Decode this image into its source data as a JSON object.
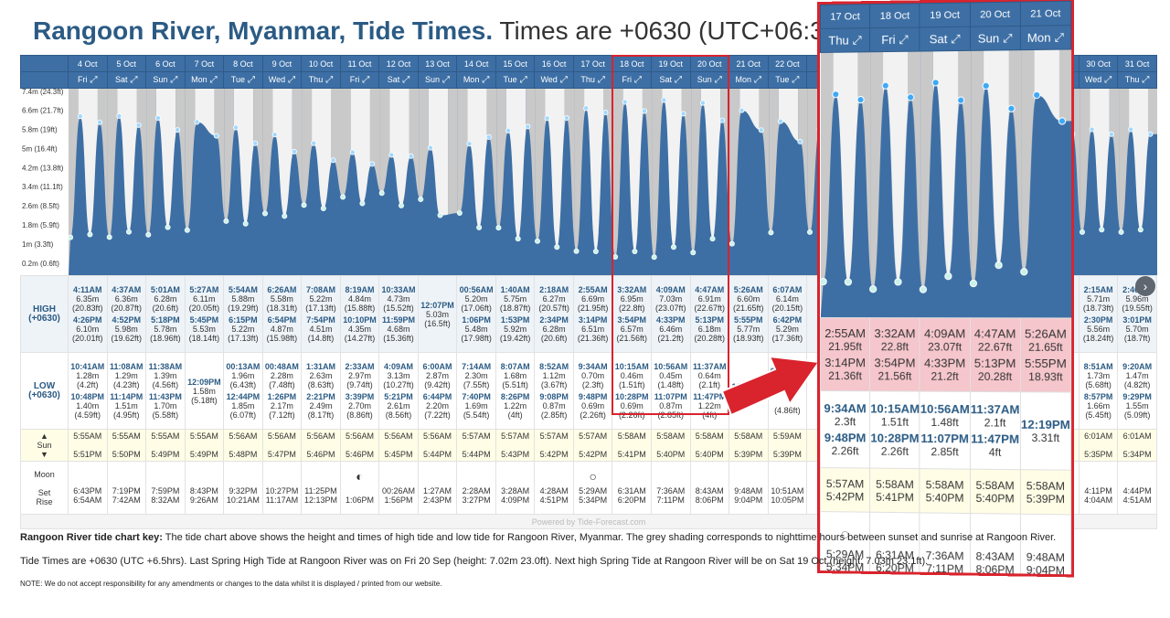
{
  "header": {
    "title_place": "Rangoon River, Myanmar, Tide Times.",
    "title_tz": "Times are +0630 (UTC+06:30)"
  },
  "colors": {
    "sea": "#3d6fa5",
    "night": "#c9c9c9",
    "day": "#f2f2f2",
    "accent": "#2b5b84",
    "highlight": "#d9232d",
    "spring": "#f5c6cc"
  },
  "icons": {
    "expand": "expand-icon",
    "moon": "moon-phase-icon",
    "sun": "sun-icon"
  },
  "labels": {
    "high": "HIGH",
    "high_tz": "(+0630)",
    "low": "LOW",
    "low_tz": "(+0630)",
    "sun": "Sun",
    "moon": "Moon",
    "set": "Set",
    "rise": "Rise"
  },
  "columns": [
    {
      "date": "4 Oct",
      "day": "Fri",
      "high": [
        [
          "4:11AM",
          "6.35m",
          "(20.83ft)"
        ],
        [
          "4:26PM",
          "6.10m",
          "(20.01ft)"
        ]
      ],
      "low": [
        [
          "10:41AM",
          "1.28m",
          "(4.2ft)"
        ],
        [
          "10:48PM",
          "1.40m",
          "(4.59ft)"
        ]
      ],
      "sunrise": "5:55AM",
      "sunset": "5:51PM",
      "moonset": "6:43PM",
      "moonrise": "6:54AM",
      "moon": ""
    },
    {
      "date": "5 Oct",
      "day": "Sat",
      "high": [
        [
          "4:37AM",
          "6.36m",
          "(20.87ft)"
        ],
        [
          "4:52PM",
          "5.98m",
          "(19.62ft)"
        ]
      ],
      "low": [
        [
          "11:08AM",
          "1.29m",
          "(4.23ft)"
        ],
        [
          "11:14PM",
          "1.51m",
          "(4.95ft)"
        ]
      ],
      "sunrise": "5:55AM",
      "sunset": "5:50PM",
      "moonset": "7:19PM",
      "moonrise": "7:42AM",
      "moon": ""
    },
    {
      "date": "6 Oct",
      "day": "Sun",
      "high": [
        [
          "5:01AM",
          "6.28m",
          "(20.6ft)"
        ],
        [
          "5:18PM",
          "5.78m",
          "(18.96ft)"
        ]
      ],
      "low": [
        [
          "11:38AM",
          "1.39m",
          "(4.56ft)"
        ],
        [
          "11:43PM",
          "1.70m",
          "(5.58ft)"
        ]
      ],
      "sunrise": "5:55AM",
      "sunset": "5:49PM",
      "moonset": "7:59PM",
      "moonrise": "8:32AM",
      "moon": ""
    },
    {
      "date": "7 Oct",
      "day": "Mon",
      "high": [
        [
          "5:27AM",
          "6.11m",
          "(20.05ft)"
        ],
        [
          "5:45PM",
          "5.53m",
          "(18.14ft)"
        ]
      ],
      "low": [
        [
          "12:09PM",
          "1.58m",
          "(5.18ft)"
        ]
      ],
      "sunrise": "5:55AM",
      "sunset": "5:49PM",
      "moonset": "8:43PM",
      "moonrise": "9:26AM",
      "moon": ""
    },
    {
      "date": "8 Oct",
      "day": "Tue",
      "high": [
        [
          "5:54AM",
          "5.88m",
          "(19.29ft)"
        ],
        [
          "6:15PM",
          "5.22m",
          "(17.13ft)"
        ]
      ],
      "low": [
        [
          "00:13AM",
          "1.96m",
          "(6.43ft)"
        ],
        [
          "12:44PM",
          "1.85m",
          "(6.07ft)"
        ]
      ],
      "sunrise": "5:56AM",
      "sunset": "5:48PM",
      "moonset": "9:32PM",
      "moonrise": "10:21AM",
      "moon": ""
    },
    {
      "date": "9 Oct",
      "day": "Wed",
      "high": [
        [
          "6:26AM",
          "5.58m",
          "(18.31ft)"
        ],
        [
          "6:54PM",
          "4.87m",
          "(15.98ft)"
        ]
      ],
      "low": [
        [
          "00:48AM",
          "2.28m",
          "(7.48ft)"
        ],
        [
          "1:26PM",
          "2.17m",
          "(7.12ft)"
        ]
      ],
      "sunrise": "5:56AM",
      "sunset": "5:47PM",
      "moonset": "10:27PM",
      "moonrise": "11:17AM",
      "moon": ""
    },
    {
      "date": "10 Oct",
      "day": "Thu",
      "high": [
        [
          "7:08AM",
          "5.22m",
          "(17.13ft)"
        ],
        [
          "7:54PM",
          "4.51m",
          "(14.8ft)"
        ]
      ],
      "low": [
        [
          "1:31AM",
          "2.63m",
          "(8.63ft)"
        ],
        [
          "2:21PM",
          "2.49m",
          "(8.17ft)"
        ]
      ],
      "sunrise": "5:56AM",
      "sunset": "5:46PM",
      "moonset": "11:25PM",
      "moonrise": "12:13PM",
      "moon": ""
    },
    {
      "date": "11 Oct",
      "day": "Fri",
      "high": [
        [
          "8:19AM",
          "4.84m",
          "(15.88ft)"
        ],
        [
          "10:10PM",
          "4.35m",
          "(14.27ft)"
        ]
      ],
      "low": [
        [
          "2:33AM",
          "2.97m",
          "(9.74ft)"
        ],
        [
          "3:39PM",
          "2.70m",
          "(8.86ft)"
        ]
      ],
      "sunrise": "5:56AM",
      "sunset": "5:46PM",
      "moonset": "",
      "moonrise": "1:06PM",
      "moon": "◐"
    },
    {
      "date": "12 Oct",
      "day": "Sat",
      "high": [
        [
          "10:33AM",
          "4.73m",
          "(15.52ft)"
        ],
        [
          "11:59PM",
          "4.68m",
          "(15.36ft)"
        ]
      ],
      "low": [
        [
          "4:09AM",
          "3.13m",
          "(10.27ft)"
        ],
        [
          "5:21PM",
          "2.61m",
          "(8.56ft)"
        ]
      ],
      "sunrise": "5:56AM",
      "sunset": "5:45PM",
      "moonset": "00:26AM",
      "moonrise": "1:56PM",
      "moon": ""
    },
    {
      "date": "13 Oct",
      "day": "Sun",
      "high": [
        [
          "12:07PM",
          "5.03m",
          "(16.5ft)"
        ]
      ],
      "low": [
        [
          "6:00AM",
          "2.87m",
          "(9.42ft)"
        ],
        [
          "6:44PM",
          "2.20m",
          "(7.22ft)"
        ]
      ],
      "sunrise": "5:56AM",
      "sunset": "5:44PM",
      "moonset": "1:27AM",
      "moonrise": "2:43PM",
      "moon": ""
    },
    {
      "date": "14 Oct",
      "day": "Mon",
      "high": [
        [
          "00:56AM",
          "5.20m",
          "(17.06ft)"
        ],
        [
          "1:06PM",
          "5.48m",
          "(17.98ft)"
        ]
      ],
      "low": [
        [
          "7:14AM",
          "2.30m",
          "(7.55ft)"
        ],
        [
          "7:40PM",
          "1.69m",
          "(5.54ft)"
        ]
      ],
      "sunrise": "5:57AM",
      "sunset": "5:44PM",
      "moonset": "2:28AM",
      "moonrise": "3:27PM",
      "moon": ""
    },
    {
      "date": "15 Oct",
      "day": "Tue",
      "high": [
        [
          "1:40AM",
          "5.75m",
          "(18.87ft)"
        ],
        [
          "1:53PM",
          "5.92m",
          "(19.42ft)"
        ]
      ],
      "low": [
        [
          "8:07AM",
          "1.68m",
          "(5.51ft)"
        ],
        [
          "8:26PM",
          "1.22m",
          "(4ft)"
        ]
      ],
      "sunrise": "5:57AM",
      "sunset": "5:43PM",
      "moonset": "3:28AM",
      "moonrise": "4:09PM",
      "moon": ""
    },
    {
      "date": "16 Oct",
      "day": "Wed",
      "high": [
        [
          "2:18AM",
          "6.27m",
          "(20.57ft)"
        ],
        [
          "2:34PM",
          "6.28m",
          "(20.6ft)"
        ]
      ],
      "low": [
        [
          "8:52AM",
          "1.12m",
          "(3.67ft)"
        ],
        [
          "9:08PM",
          "0.87m",
          "(2.85ft)"
        ]
      ],
      "sunrise": "5:57AM",
      "sunset": "5:42PM",
      "moonset": "4:28AM",
      "moonrise": "4:51PM",
      "moon": ""
    },
    {
      "date": "17 Oct",
      "day": "Thu",
      "high": [
        [
          "2:55AM",
          "6.69m",
          "(21.95ft)"
        ],
        [
          "3:14PM",
          "6.51m",
          "(21.36ft)"
        ]
      ],
      "low": [
        [
          "9:34AM",
          "0.70m",
          "(2.3ft)"
        ],
        [
          "9:48PM",
          "0.69m",
          "(2.26ft)"
        ]
      ],
      "sunrise": "5:57AM",
      "sunset": "5:42PM",
      "moonset": "5:29AM",
      "moonrise": "5:34PM",
      "moon": "○"
    },
    {
      "date": "18 Oct",
      "day": "Fri",
      "high": [
        [
          "3:32AM",
          "6.95m",
          "(22.8ft)"
        ],
        [
          "3:54PM",
          "6.57m",
          "(21.56ft)"
        ]
      ],
      "low": [
        [
          "10:15AM",
          "0.46m",
          "(1.51ft)"
        ],
        [
          "10:28PM",
          "0.69m",
          "(2.26ft)"
        ]
      ],
      "sunrise": "5:58AM",
      "sunset": "5:41PM",
      "moonset": "6:31AM",
      "moonrise": "6:20PM",
      "moon": ""
    },
    {
      "date": "19 Oct",
      "day": "Sat",
      "high": [
        [
          "4:09AM",
          "7.03m",
          "(23.07ft)"
        ],
        [
          "4:33PM",
          "6.46m",
          "(21.2ft)"
        ]
      ],
      "low": [
        [
          "10:56AM",
          "0.45m",
          "(1.48ft)"
        ],
        [
          "11:07PM",
          "0.87m",
          "(2.85ft)"
        ]
      ],
      "sunrise": "5:58AM",
      "sunset": "5:40PM",
      "moonset": "7:36AM",
      "moonrise": "7:11PM",
      "moon": ""
    },
    {
      "date": "20 Oct",
      "day": "Sun",
      "high": [
        [
          "4:47AM",
          "6.91m",
          "(22.67ft)"
        ],
        [
          "5:13PM",
          "6.18m",
          "(20.28ft)"
        ]
      ],
      "low": [
        [
          "11:37AM",
          "0.64m",
          "(2.1ft)"
        ],
        [
          "11:47PM",
          "1.22m",
          "(4ft)"
        ]
      ],
      "sunrise": "5:58AM",
      "sunset": "5:40PM",
      "moonset": "8:43AM",
      "moonrise": "8:06PM",
      "moon": ""
    },
    {
      "date": "21 Oct",
      "day": "Mon",
      "high": [
        [
          "5:26AM",
          "6.60m",
          "(21.65ft)"
        ],
        [
          "5:55PM",
          "5.77m",
          "(18.93ft)"
        ]
      ],
      "low": [
        [
          "12:19PM",
          "",
          ""
        ]
      ],
      "sunrise": "5:58AM",
      "sunset": "5:39PM",
      "moonset": "9:48AM",
      "moonrise": "9:04PM",
      "moon": ""
    },
    {
      "date": "22 Oct",
      "day": "Tue",
      "high": [
        [
          "6:07AM",
          "6.14m",
          "(20.15ft)"
        ],
        [
          "6:42PM",
          "5.29m",
          "(17.36ft)"
        ]
      ],
      "low": [
        [
          "00:2?AM",
          "",
          ""
        ],
        [
          "",
          "",
          "(4.86ft)"
        ]
      ],
      "sunrise": "5:59AM",
      "sunset": "5:39PM",
      "moonset": "10:51AM",
      "moonrise": "10:05PM",
      "moon": ""
    },
    {
      "date": "",
      "day": "",
      "high": [],
      "low": [],
      "sunrise": "",
      "sunset": "",
      "moonset": "",
      "moonrise": "",
      "moon": ""
    },
    {
      "date": "",
      "day": "",
      "high": [],
      "low": [],
      "sunrise": "",
      "sunset": "",
      "moonset": "",
      "moonrise": "",
      "moon": ""
    },
    {
      "date": "",
      "day": "",
      "high": [],
      "low": [],
      "sunrise": "",
      "sunset": "",
      "moonset": "",
      "moonrise": "",
      "moon": ""
    },
    {
      "date": "",
      "day": "",
      "high": [],
      "low": [],
      "sunrise": "",
      "sunset": "",
      "moonset": "",
      "moonrise": "",
      "moon": ""
    },
    {
      "date": "",
      "day": "",
      "high": [],
      "low": [],
      "sunrise": "",
      "sunset": "",
      "moonset": "",
      "moonrise": "",
      "moon": ""
    },
    {
      "date": "",
      "day": "",
      "high": [],
      "low": [],
      "sunrise": "",
      "sunset": "",
      "moonset": "",
      "moonrise": "",
      "moon": ""
    },
    {
      "date": "",
      "day": "",
      "high": [],
      "low": [],
      "sunrise": "",
      "sunset": "",
      "moonset": "",
      "moonrise": "",
      "moon": ""
    },
    {
      "date": "30 Oct",
      "day": "Wed",
      "high": [
        [
          "2:15AM",
          "5.71m",
          "(18.73ft)"
        ],
        [
          "2:30PM",
          "5.56m",
          "(18.24ft)"
        ]
      ],
      "low": [
        [
          "8:51AM",
          "1.73m",
          "(5.68ft)"
        ],
        [
          "8:57PM",
          "1.66m",
          "(5.45ft)"
        ]
      ],
      "sunrise": "6:01AM",
      "sunset": "5:35PM",
      "moonset": "4:11PM",
      "moonrise": "4:04AM",
      "moon": ""
    },
    {
      "date": "31 Oct",
      "day": "Thu",
      "high": [
        [
          "2:46AM",
          "5.96m",
          "(19.55ft)"
        ],
        [
          "3:01PM",
          "5.70m",
          "(18.7ft)"
        ]
      ],
      "low": [
        [
          "9:20AM",
          "1.47m",
          "(4.82ft)"
        ],
        [
          "9:29PM",
          "1.55m",
          "(5.09ft)"
        ]
      ],
      "sunrise": "6:01AM",
      "sunset": "5:34PM",
      "moonset": "4:44PM",
      "moonrise": "4:51AM",
      "moon": ""
    }
  ],
  "zoom": {
    "columns": [
      {
        "date": "17 Oct",
        "day": "Thu",
        "high": [
          [
            "2:55AM",
            "21.95ft"
          ],
          [
            "3:14PM",
            "21.36ft"
          ]
        ],
        "low": [
          [
            "9:34AM",
            "2.3ft"
          ],
          [
            "9:48PM",
            "2.26ft"
          ]
        ],
        "sun": [
          "5:57AM",
          "5:42PM"
        ],
        "moon": "○",
        "moon_times": [
          "5:29AM",
          "5:34PM"
        ]
      },
      {
        "date": "18 Oct",
        "day": "Fri",
        "high": [
          [
            "3:32AM",
            "22.8ft"
          ],
          [
            "3:54PM",
            "21.56ft"
          ]
        ],
        "low": [
          [
            "10:15AM",
            "1.51ft"
          ],
          [
            "10:28PM",
            "2.26ft"
          ]
        ],
        "sun": [
          "5:58AM",
          "5:41PM"
        ],
        "moon": "",
        "moon_times": [
          "6:31AM",
          "6:20PM"
        ]
      },
      {
        "date": "19 Oct",
        "day": "Sat",
        "high": [
          [
            "4:09AM",
            "23.07ft"
          ],
          [
            "4:33PM",
            "21.2ft"
          ]
        ],
        "low": [
          [
            "10:56AM",
            "1.48ft"
          ],
          [
            "11:07PM",
            "2.85ft"
          ]
        ],
        "sun": [
          "5:58AM",
          "5:40PM"
        ],
        "moon": "",
        "moon_times": [
          "7:36AM",
          "7:11PM"
        ]
      },
      {
        "date": "20 Oct",
        "day": "Sun",
        "high": [
          [
            "4:47AM",
            "22.67ft"
          ],
          [
            "5:13PM",
            "20.28ft"
          ]
        ],
        "low": [
          [
            "11:37AM",
            "2.1ft"
          ],
          [
            "11:47PM",
            "4ft"
          ]
        ],
        "sun": [
          "5:58AM",
          "5:40PM"
        ],
        "moon": "",
        "moon_times": [
          "8:43AM",
          "8:06PM"
        ]
      },
      {
        "date": "21 Oct",
        "day": "Mon",
        "high": [
          [
            "5:26AM",
            "21.65ft"
          ],
          [
            "5:55PM",
            "18.93ft"
          ]
        ],
        "low": [
          [
            "12:19PM",
            "3.31ft"
          ]
        ],
        "sun": [
          "5:58AM",
          "5:39PM"
        ],
        "moon": "",
        "moon_times": [
          "9:48AM",
          "9:04PM"
        ]
      }
    ]
  },
  "watermark": "Powered by Tide-Forecast.com",
  "notes": {
    "key_label": "Rangoon River tide chart key:",
    "key_text": "The tide chart above shows the height and times of high tide and low tide for Rangoon River, Myanmar. The grey shading corresponds to nighttime hours between sunset and sunrise at Rangoon River.",
    "spring_text": "Tide Times are +0630 (UTC +6.5hrs). Last Spring High Tide at Rangoon River was on Fri 20 Sep (height: 7.02m 23.0ft). Next high Spring Tide at Rangoon River will be on Sat 19 Oct (height: 7.03m 23.1ft).",
    "disclaimer": "NOTE: We do not accept responsibility for any amendments or changes to the data whilst it is displayed / printed from our website."
  },
  "chart_data": {
    "type": "area",
    "xlabel": "",
    "ylabel": "",
    "ylim": [
      0,
      7.2
    ],
    "y_ticks": [
      "0.2m (0.6ft)",
      "1m (3.3ft)",
      "1.8m (5.9ft)",
      "2.6m (8.5ft)",
      "3.4m (11.1ft)",
      "4.2m (13.8ft)",
      "5m (16.4ft)",
      "5.8m (19ft)",
      "6.6m (21.7ft)",
      "7.4m (24.3ft)"
    ],
    "y_tick_values": [
      0.2,
      1.0,
      1.8,
      2.6,
      3.4,
      4.2,
      5.0,
      5.8,
      6.6,
      7.4
    ],
    "series": [
      {
        "name": "",
        "x_days": [
          "4 Oct",
          "5 Oct",
          "6 Oct",
          "7 Oct",
          "8 Oct",
          "9 Oct",
          "10 Oct",
          "11 Oct",
          "12 Oct",
          "13 Oct",
          "14 Oct",
          "15 Oct",
          "16 Oct",
          "17 Oct",
          "18 Oct",
          "19 Oct",
          "20 Oct",
          "21 Oct",
          "22 Oct"
        ],
        "high_values": [
          [
            6.35,
            6.1
          ],
          [
            6.36,
            5.98
          ],
          [
            6.28,
            5.78
          ],
          [
            6.11,
            5.53
          ],
          [
            5.88,
            5.22
          ],
          [
            5.58,
            4.87
          ],
          [
            5.22,
            4.51
          ],
          [
            4.84,
            4.35
          ],
          [
            4.73,
            4.68
          ],
          [
            5.03
          ],
          [
            5.2,
            5.48
          ],
          [
            5.75,
            5.92
          ],
          [
            6.27,
            6.28
          ],
          [
            6.69,
            6.51
          ],
          [
            6.95,
            6.57
          ],
          [
            7.03,
            6.46
          ],
          [
            6.91,
            6.18
          ],
          [
            6.6,
            5.77
          ],
          [
            6.14,
            5.29
          ]
        ],
        "low_values": [
          [
            1.28,
            1.4
          ],
          [
            1.29,
            1.51
          ],
          [
            1.39,
            1.7
          ],
          [
            1.58
          ],
          [
            1.96,
            1.85
          ],
          [
            2.28,
            2.17
          ],
          [
            2.63,
            2.49
          ],
          [
            2.97,
            2.7
          ],
          [
            3.13,
            2.61
          ],
          [
            2.87,
            2.2
          ],
          [
            2.3,
            1.69
          ],
          [
            1.68,
            1.22
          ],
          [
            1.12,
            0.87
          ],
          [
            0.7,
            0.69
          ],
          [
            0.46,
            0.69
          ],
          [
            0.45,
            0.87
          ],
          [
            0.64,
            1.22
          ],
          [
            1.01
          ],
          [
            1.48
          ]
        ]
      }
    ]
  }
}
